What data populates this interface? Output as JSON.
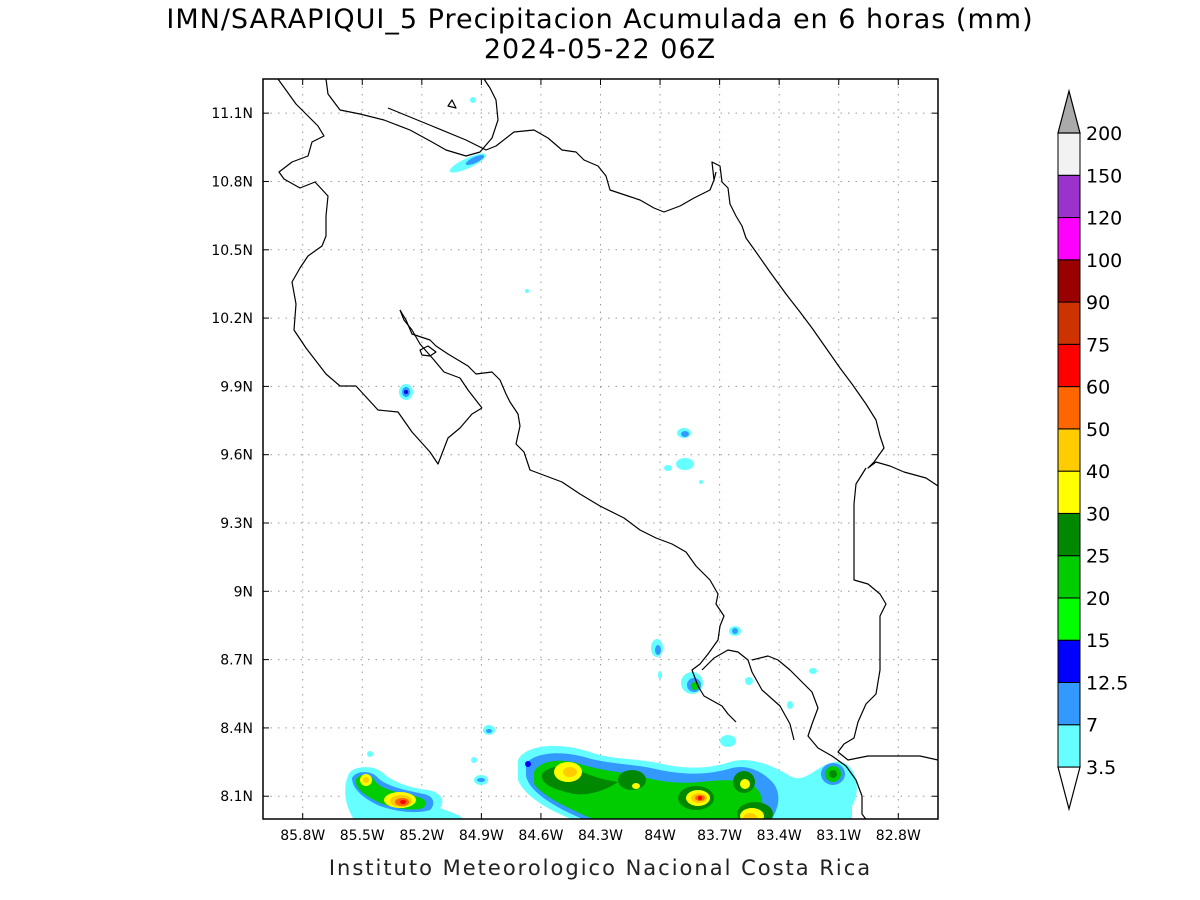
{
  "title_line1": "IMN/SARAPIQUI_5 Precipitacion Acumulada en 6 horas (mm)",
  "title_line2": "2024-05-22 06Z",
  "footer": "Instituto Meteorologico Nacional Costa Rica",
  "map": {
    "lon_range": [
      -86.0,
      -82.6
    ],
    "lat_range": [
      8.0,
      11.25
    ],
    "lon_ticks": [
      "85.8W",
      "85.5W",
      "85.2W",
      "84.9W",
      "84.6W",
      "84.3W",
      "84W",
      "83.7W",
      "83.4W",
      "83.1W",
      "82.8W"
    ],
    "lat_ticks": [
      "8.1N",
      "8.4N",
      "8.7N",
      "9N",
      "9.3N",
      "9.6N",
      "9.9N",
      "10.2N",
      "10.5N",
      "10.8N",
      "11.1N"
    ]
  },
  "colorbar": {
    "labels": [
      "3.5",
      "7",
      "12.5",
      "15",
      "20",
      "25",
      "30",
      "40",
      "50",
      "60",
      "75",
      "90",
      "100",
      "120",
      "150",
      "200"
    ],
    "colors": [
      "#66ffff",
      "#3399ff",
      "#0000ff",
      "#00ff00",
      "#00cc00",
      "#008800",
      "#ffff00",
      "#ffcc00",
      "#ff6600",
      "#ff0000",
      "#cc3300",
      "#990000",
      "#ff00ff",
      "#9933cc",
      "#f2f2f2",
      "#aaaaaa"
    ]
  }
}
